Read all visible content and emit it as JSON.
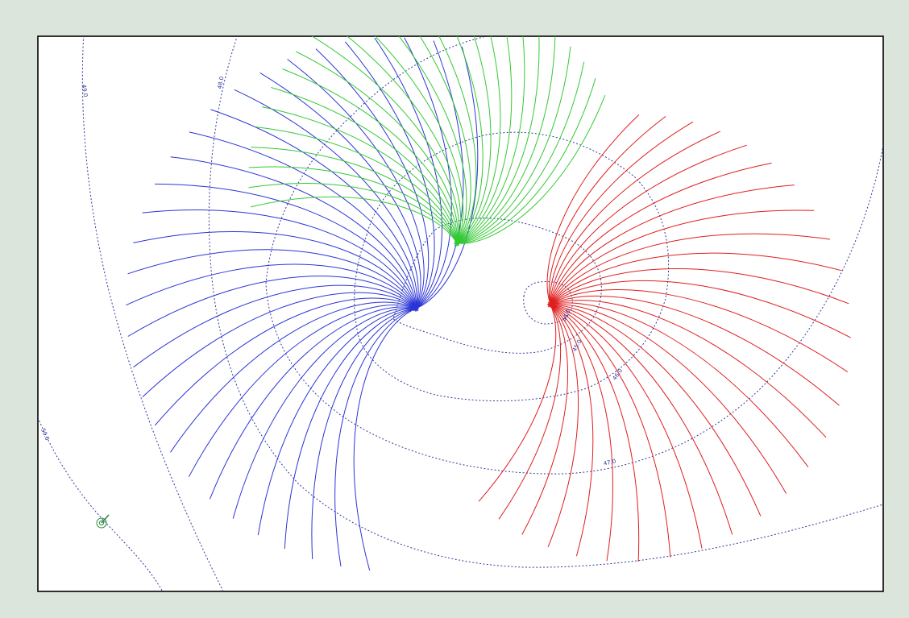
{
  "colors": {
    "background": "#dbe5dc",
    "contour": "#2f3a9c",
    "blue_wells": "#2b35d6",
    "green_wells": "#34c934",
    "red_wells": "#e01e1e",
    "marker": "#2e8b3a"
  },
  "contours": [
    {
      "label": "44.0"
    },
    {
      "label": "45.0"
    },
    {
      "label": "46.0"
    },
    {
      "label": "47.0"
    },
    {
      "label": "48.0"
    },
    {
      "label": "49.0"
    },
    {
      "label": "50.0"
    }
  ],
  "wells": [
    {
      "name": "blue",
      "color": "#2b35d6",
      "lines": 30
    },
    {
      "name": "green",
      "color": "#34c934",
      "lines": 26
    },
    {
      "name": "red",
      "color": "#e01e1e",
      "lines": 28
    }
  ],
  "marker_icon": "observation-point-icon"
}
